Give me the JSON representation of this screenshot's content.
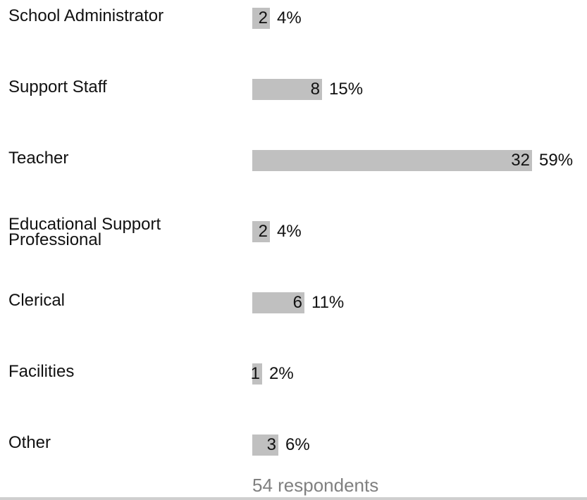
{
  "chart_data": {
    "type": "bar",
    "orientation": "horizontal",
    "categories": [
      [
        "School Administrator"
      ],
      [
        "Support Staff"
      ],
      [
        "Teacher"
      ],
      [
        "Educational Support",
        "Professional"
      ],
      [
        "Clerical"
      ],
      [
        "Facilities"
      ],
      [
        "Other"
      ]
    ],
    "values": [
      2,
      8,
      32,
      2,
      6,
      1,
      3
    ],
    "percent_labels": [
      "4%",
      "15%",
      "59%",
      "4%",
      "11%",
      "2%",
      "6%"
    ],
    "total_label": "54 respondents",
    "bar_color": "#c0c0c0",
    "grid": false,
    "legend": "none"
  }
}
